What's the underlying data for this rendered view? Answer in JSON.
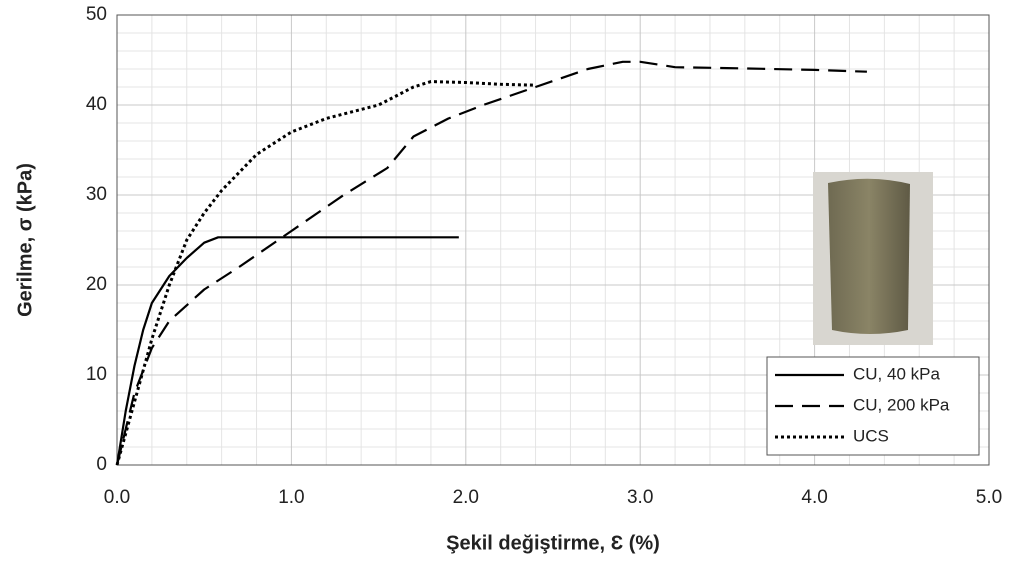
{
  "chart_data": {
    "type": "line",
    "x_label": "Şekil değiştirme, Ɛ (%)",
    "y_label": "Gerilme, σ (kPa)",
    "xlim": [
      0,
      5
    ],
    "xticks": [
      {
        "value": 0,
        "label": "0.0"
      },
      {
        "value": 1,
        "label": "1.0"
      },
      {
        "value": 2,
        "label": "2.0"
      },
      {
        "value": 3,
        "label": "3.0"
      },
      {
        "value": 4,
        "label": "4.0"
      },
      {
        "value": 5,
        "label": "5.0"
      }
    ],
    "ylim": [
      0,
      50
    ],
    "yticks": [
      0,
      10,
      20,
      30,
      40,
      50
    ],
    "grid": true,
    "minor_divisions": 5,
    "legend": "lower right",
    "series": [
      {
        "name": "CU, 40 kPa",
        "color": "#000000",
        "dash": "solid",
        "x": [
          0,
          0.05,
          0.1,
          0.15,
          0.2,
          0.3,
          0.4,
          0.5,
          0.58,
          1.0,
          1.5,
          1.96
        ],
        "values": [
          0,
          6,
          11,
          15,
          18,
          21,
          23,
          24.7,
          25.3,
          25.3,
          25.3,
          25.3
        ]
      },
      {
        "name": "CU, 200 kPa",
        "color": "#000000",
        "dash": "dashed",
        "x": [
          0,
          0.1,
          0.2,
          0.3,
          0.5,
          0.7,
          1.0,
          1.3,
          1.55,
          1.7,
          1.9,
          2.1,
          2.4,
          2.7,
          2.9,
          3.0,
          3.2,
          3.5,
          4.0,
          4.3
        ],
        "values": [
          0,
          8,
          13,
          16,
          19.5,
          22,
          26,
          30,
          33,
          36.5,
          38.5,
          40,
          42,
          44,
          44.8,
          44.8,
          44.2,
          44.1,
          43.9,
          43.7
        ]
      },
      {
        "name": "UCS",
        "color": "#000000",
        "dash": "dotted",
        "x": [
          0,
          0.1,
          0.2,
          0.3,
          0.4,
          0.5,
          0.6,
          0.8,
          1.0,
          1.2,
          1.5,
          1.7,
          1.8,
          2.0,
          2.2,
          2.4
        ],
        "values": [
          0,
          7,
          14,
          20,
          25,
          28,
          30.5,
          34.5,
          37,
          38.5,
          40,
          42,
          42.6,
          42.5,
          42.3,
          42.2
        ]
      }
    ]
  }
}
